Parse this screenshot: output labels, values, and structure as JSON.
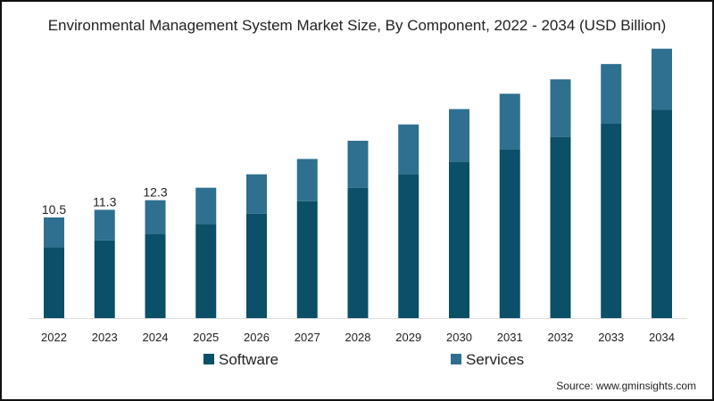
{
  "chart_data": {
    "type": "bar",
    "stacked": true,
    "title": "Environmental Management System Market Size, By Component, 2022 - 2034 (USD Billion)",
    "xlabel": "",
    "ylabel": "",
    "ylim": [
      0,
      30
    ],
    "grid": false,
    "legend_position": "bottom",
    "categories": [
      "2022",
      "2023",
      "2024",
      "2025",
      "2026",
      "2027",
      "2028",
      "2029",
      "2030",
      "2031",
      "2032",
      "2033",
      "2034"
    ],
    "series": [
      {
        "name": "Software",
        "color": "#0b4f68",
        "values": [
          7.4,
          8.1,
          8.8,
          9.8,
          10.9,
          12.2,
          13.6,
          15.0,
          16.3,
          17.6,
          18.9,
          20.3,
          21.7
        ]
      },
      {
        "name": "Services",
        "color": "#2f6f8f",
        "values": [
          3.1,
          3.2,
          3.5,
          3.8,
          4.1,
          4.4,
          4.9,
          5.2,
          5.5,
          5.8,
          6.0,
          6.2,
          6.4
        ]
      }
    ],
    "data_labels": [
      {
        "category": "2022",
        "text": "10.5"
      },
      {
        "category": "2023",
        "text": "11.3"
      },
      {
        "category": "2024",
        "text": "12.3"
      }
    ],
    "source": "Source: www.gminsights.com"
  }
}
